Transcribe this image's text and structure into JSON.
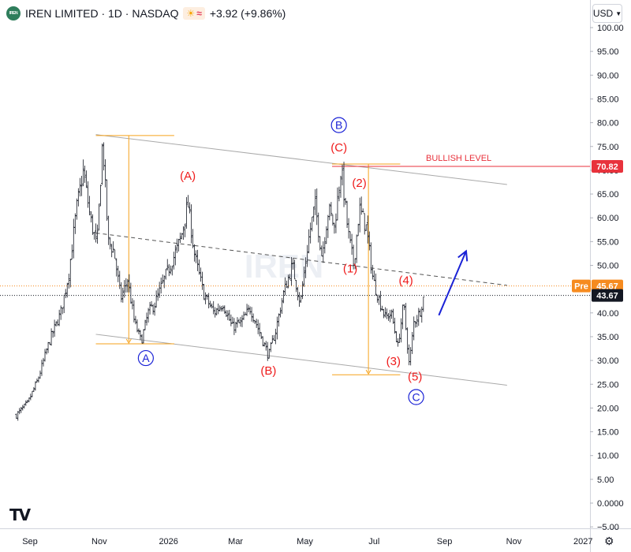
{
  "header": {
    "logo_text": "IREN",
    "title": "IREN LIMITED · 1D · NASDAQ",
    "sun_icon": "sun-icon",
    "wave_icon": "approx-icon",
    "change": "+3.92 (+9.86%)"
  },
  "currency": {
    "label": "USD",
    "icon": "chevron-down-icon"
  },
  "watermark": "IREN",
  "footer": {
    "tv_logo": "TV",
    "settings_icon": "gear-icon"
  },
  "chart_data": {
    "type": "candlestick",
    "y_axis": {
      "ticks": [
        100,
        95,
        90,
        85,
        80,
        75,
        70,
        65,
        60,
        55,
        50,
        45,
        40,
        35,
        30,
        25,
        20,
        15,
        10,
        5,
        0,
        -5
      ],
      "tick_labels": [
        "100.00",
        "95.00",
        "90.00",
        "85.00",
        "80.00",
        "75.00",
        "70.00",
        "65.00",
        "60.00",
        "55.00",
        "50.00",
        "45.00",
        "40.00",
        "35.00",
        "30.00",
        "25.00",
        "20.00",
        "15.00",
        "10.00",
        "5.00",
        "0.0000",
        "−5.00"
      ]
    },
    "x_axis": {
      "labels": [
        "Sep",
        "Nov",
        "2026",
        "Mar",
        "May",
        "Jul",
        "Sep",
        "Nov",
        "2027"
      ]
    },
    "price_path": [
      [
        "2025-08-20",
        18.5
      ],
      [
        "2025-08-30",
        21
      ],
      [
        "2025-09-08",
        26
      ],
      [
        "2025-09-18",
        34
      ],
      [
        "2025-09-28",
        40
      ],
      [
        "2025-10-05",
        48
      ],
      [
        "2025-10-12",
        62
      ],
      [
        "2025-10-18",
        70
      ],
      [
        "2025-10-24",
        60
      ],
      [
        "2025-10-30",
        54
      ],
      [
        "2025-11-04",
        76.5
      ],
      [
        "2025-11-09",
        55
      ],
      [
        "2025-11-14",
        53
      ],
      [
        "2025-11-20",
        43
      ],
      [
        "2025-11-26",
        47
      ],
      [
        "2025-12-02",
        38
      ],
      [
        "2025-12-08",
        34
      ],
      [
        "2025-12-14",
        40
      ],
      [
        "2025-12-20",
        42
      ],
      [
        "2025-12-28",
        47
      ],
      [
        "2026-01-06",
        52
      ],
      [
        "2026-01-12",
        56
      ],
      [
        "2026-01-18",
        63
      ],
      [
        "2026-01-24",
        52
      ],
      [
        "2026-02-01",
        44
      ],
      [
        "2026-02-10",
        40
      ],
      [
        "2026-02-18",
        42
      ],
      [
        "2026-02-26",
        37
      ],
      [
        "2026-03-06",
        38
      ],
      [
        "2026-03-14",
        41
      ],
      [
        "2026-03-22",
        36
      ],
      [
        "2026-03-30",
        31
      ],
      [
        "2026-04-05",
        36
      ],
      [
        "2026-04-12",
        44
      ],
      [
        "2026-04-20",
        50
      ],
      [
        "2026-04-27",
        42
      ],
      [
        "2026-05-04",
        55
      ],
      [
        "2026-05-10",
        63
      ],
      [
        "2026-05-16",
        52
      ],
      [
        "2026-05-22",
        62
      ],
      [
        "2026-05-27",
        58
      ],
      [
        "2026-06-02",
        70.5
      ],
      [
        "2026-06-08",
        57
      ],
      [
        "2026-06-13",
        50
      ],
      [
        "2026-06-18",
        62
      ],
      [
        "2026-06-24",
        58
      ],
      [
        "2026-06-30",
        47
      ],
      [
        "2026-07-05",
        43
      ],
      [
        "2026-07-11",
        39
      ],
      [
        "2026-07-16",
        40
      ],
      [
        "2026-07-22",
        33
      ],
      [
        "2026-07-27",
        42
      ],
      [
        "2026-08-01",
        29
      ],
      [
        "2026-08-05",
        38
      ],
      [
        "2026-08-10",
        40
      ],
      [
        "2026-08-14",
        43.67
      ]
    ],
    "last_price": 43.67,
    "last_price_label": "43.67",
    "pre_price": 45.67,
    "pre_label": "Pre",
    "pre_price_label": "45.67",
    "bullish_level": 70.82,
    "bullish_level_label": "70.82",
    "annotations": {
      "bullish_label": "BULLISH LEVEL",
      "wave_labels": [
        {
          "text": "(A)",
          "date": "2026-01-18",
          "price": 68,
          "color": "#ef1b1b"
        },
        {
          "text": "(B)",
          "date": "2026-03-30",
          "price": 27,
          "color": "#ef1b1b"
        },
        {
          "text": "(C)",
          "date": "2026-05-31",
          "price": 74,
          "color": "#ef1b1b"
        },
        {
          "text": "(1)",
          "date": "2026-06-10",
          "price": 48.5,
          "color": "#ef1b1b"
        },
        {
          "text": "(2)",
          "date": "2026-06-18",
          "price": 66.5,
          "color": "#ef1b1b"
        },
        {
          "text": "(3)",
          "date": "2026-07-18",
          "price": 29,
          "color": "#ef1b1b"
        },
        {
          "text": "(4)",
          "date": "2026-07-29",
          "price": 46,
          "color": "#ef1b1b"
        },
        {
          "text": "(5)",
          "date": "2026-08-06",
          "price": 25.8,
          "color": "#ef1b1b"
        }
      ],
      "circled_labels": [
        {
          "text": "A",
          "date": "2025-12-12",
          "price": 30.5,
          "color": "#1a22d6"
        },
        {
          "text": "B",
          "date": "2026-05-31",
          "price": 79.5,
          "color": "#1a22d6"
        },
        {
          "text": "C",
          "date": "2026-08-07",
          "price": 22.3,
          "color": "#1a22d6"
        }
      ],
      "upper_channel": {
        "start": [
          "2025-10-29",
          77.5
        ],
        "end": [
          "2026-10-26",
          67
        ]
      },
      "lower_channel": {
        "start": [
          "2025-10-29",
          35.5
        ],
        "end": [
          "2026-10-26",
          24.8
        ]
      },
      "middle_line": {
        "start": [
          "2025-10-29",
          56.8
        ],
        "end": [
          "2026-10-26",
          45.8
        ]
      },
      "projection_arrow": {
        "start": [
          "2026-08-27",
          39.5
        ],
        "end": [
          "2026-09-20",
          53
        ]
      },
      "range_boxes": [
        {
          "top": 77.3,
          "bottom": 33.5,
          "start": "2025-10-29",
          "end": "2026-01-06",
          "mid": "2025-11-27"
        },
        {
          "top": 71.3,
          "bottom": 27,
          "start": "2026-05-25",
          "end": "2026-07-24",
          "mid": "2026-06-26"
        }
      ]
    },
    "colors": {
      "candles": "#131722",
      "bullish_line": "#e8323c",
      "channel": "#a9a9a9",
      "middle": "#555555",
      "wave_red": "#ef1b1b",
      "wave_blue": "#1a22d6",
      "range": "#f6a21b",
      "pre": "#f68b1f",
      "last": "#131722",
      "grid": "#f0f3fa"
    }
  }
}
